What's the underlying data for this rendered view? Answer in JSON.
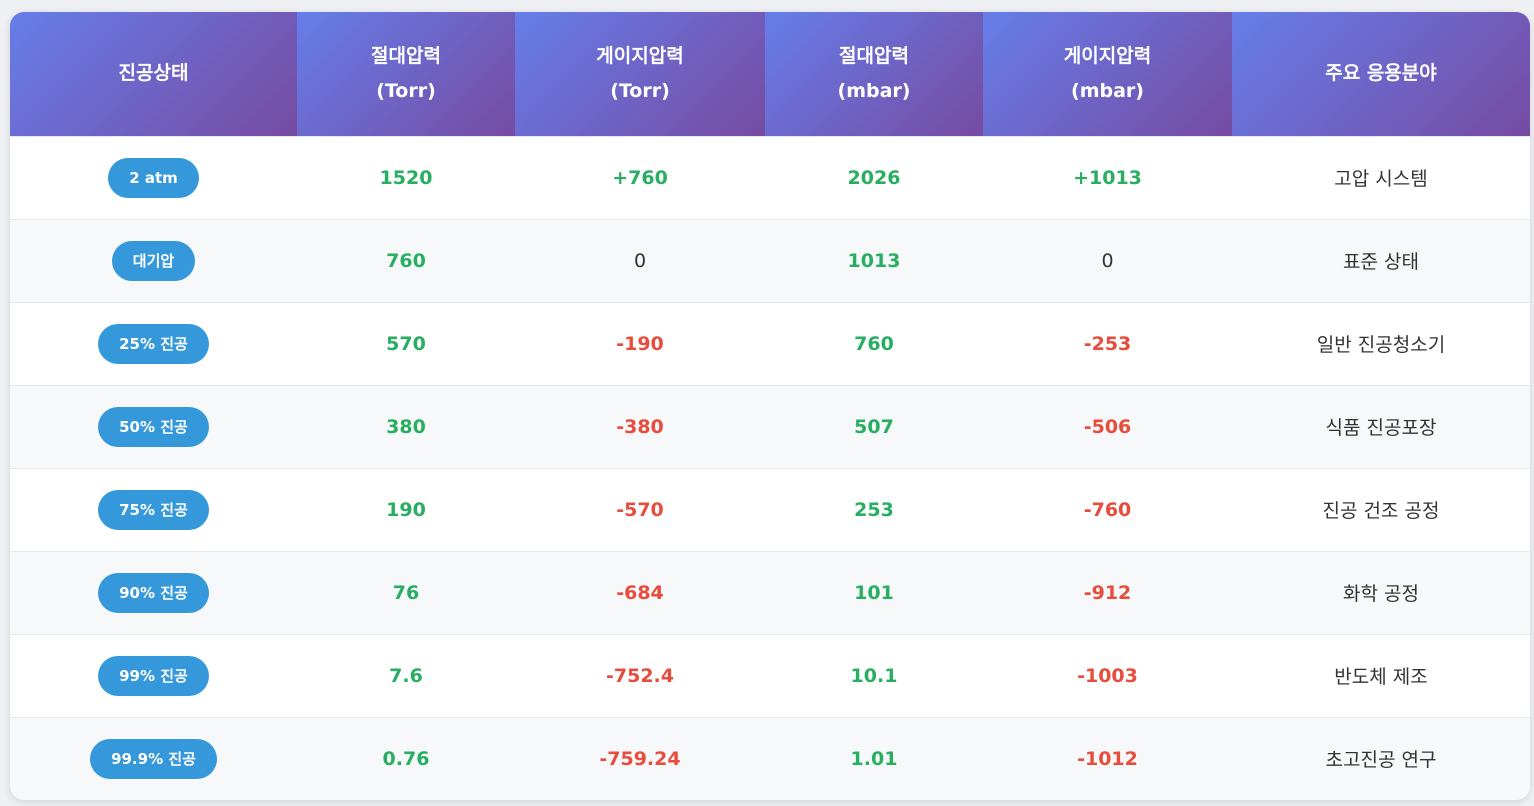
{
  "headers": [
    {
      "lines": [
        "진공상태"
      ]
    },
    {
      "lines": [
        "절대압력",
        "(Torr)"
      ]
    },
    {
      "lines": [
        "게이지압력",
        "(Torr)"
      ]
    },
    {
      "lines": [
        "절대압력",
        "(mbar)"
      ]
    },
    {
      "lines": [
        "게이지압력",
        "(mbar)"
      ]
    },
    {
      "lines": [
        "주요 응용분야"
      ]
    }
  ],
  "rows": [
    {
      "state": "2 atm",
      "abs_torr": "1520",
      "gauge_torr": "+760",
      "abs_mbar": "2026",
      "gauge_mbar": "+1013",
      "application": "고압 시스템"
    },
    {
      "state": "대기압",
      "abs_torr": "760",
      "gauge_torr": "0",
      "abs_mbar": "1013",
      "gauge_mbar": "0",
      "application": "표준 상태"
    },
    {
      "state": "25% 진공",
      "abs_torr": "570",
      "gauge_torr": "-190",
      "abs_mbar": "760",
      "gauge_mbar": "-253",
      "application": "일반 진공청소기"
    },
    {
      "state": "50% 진공",
      "abs_torr": "380",
      "gauge_torr": "-380",
      "abs_mbar": "507",
      "gauge_mbar": "-506",
      "application": "식품 진공포장"
    },
    {
      "state": "75% 진공",
      "abs_torr": "190",
      "gauge_torr": "-570",
      "abs_mbar": "253",
      "gauge_mbar": "-760",
      "application": "진공 건조 공정"
    },
    {
      "state": "90% 진공",
      "abs_torr": "76",
      "gauge_torr": "-684",
      "abs_mbar": "101",
      "gauge_mbar": "-912",
      "application": "화학 공정"
    },
    {
      "state": "99% 진공",
      "abs_torr": "7.6",
      "gauge_torr": "-752.4",
      "abs_mbar": "10.1",
      "gauge_mbar": "-1003",
      "application": "반도체 제조"
    },
    {
      "state": "99.9% 진공",
      "abs_torr": "0.76",
      "gauge_torr": "-759.24",
      "abs_mbar": "1.01",
      "gauge_mbar": "-1012",
      "application": "초고진공 연구"
    }
  ],
  "colors": {
    "header_gradient_start": "#667eea",
    "header_gradient_end": "#764ba2",
    "badge": "#3498db",
    "positive": "#27ae60",
    "negative": "#e74c3c",
    "neutral": "#333333"
  }
}
